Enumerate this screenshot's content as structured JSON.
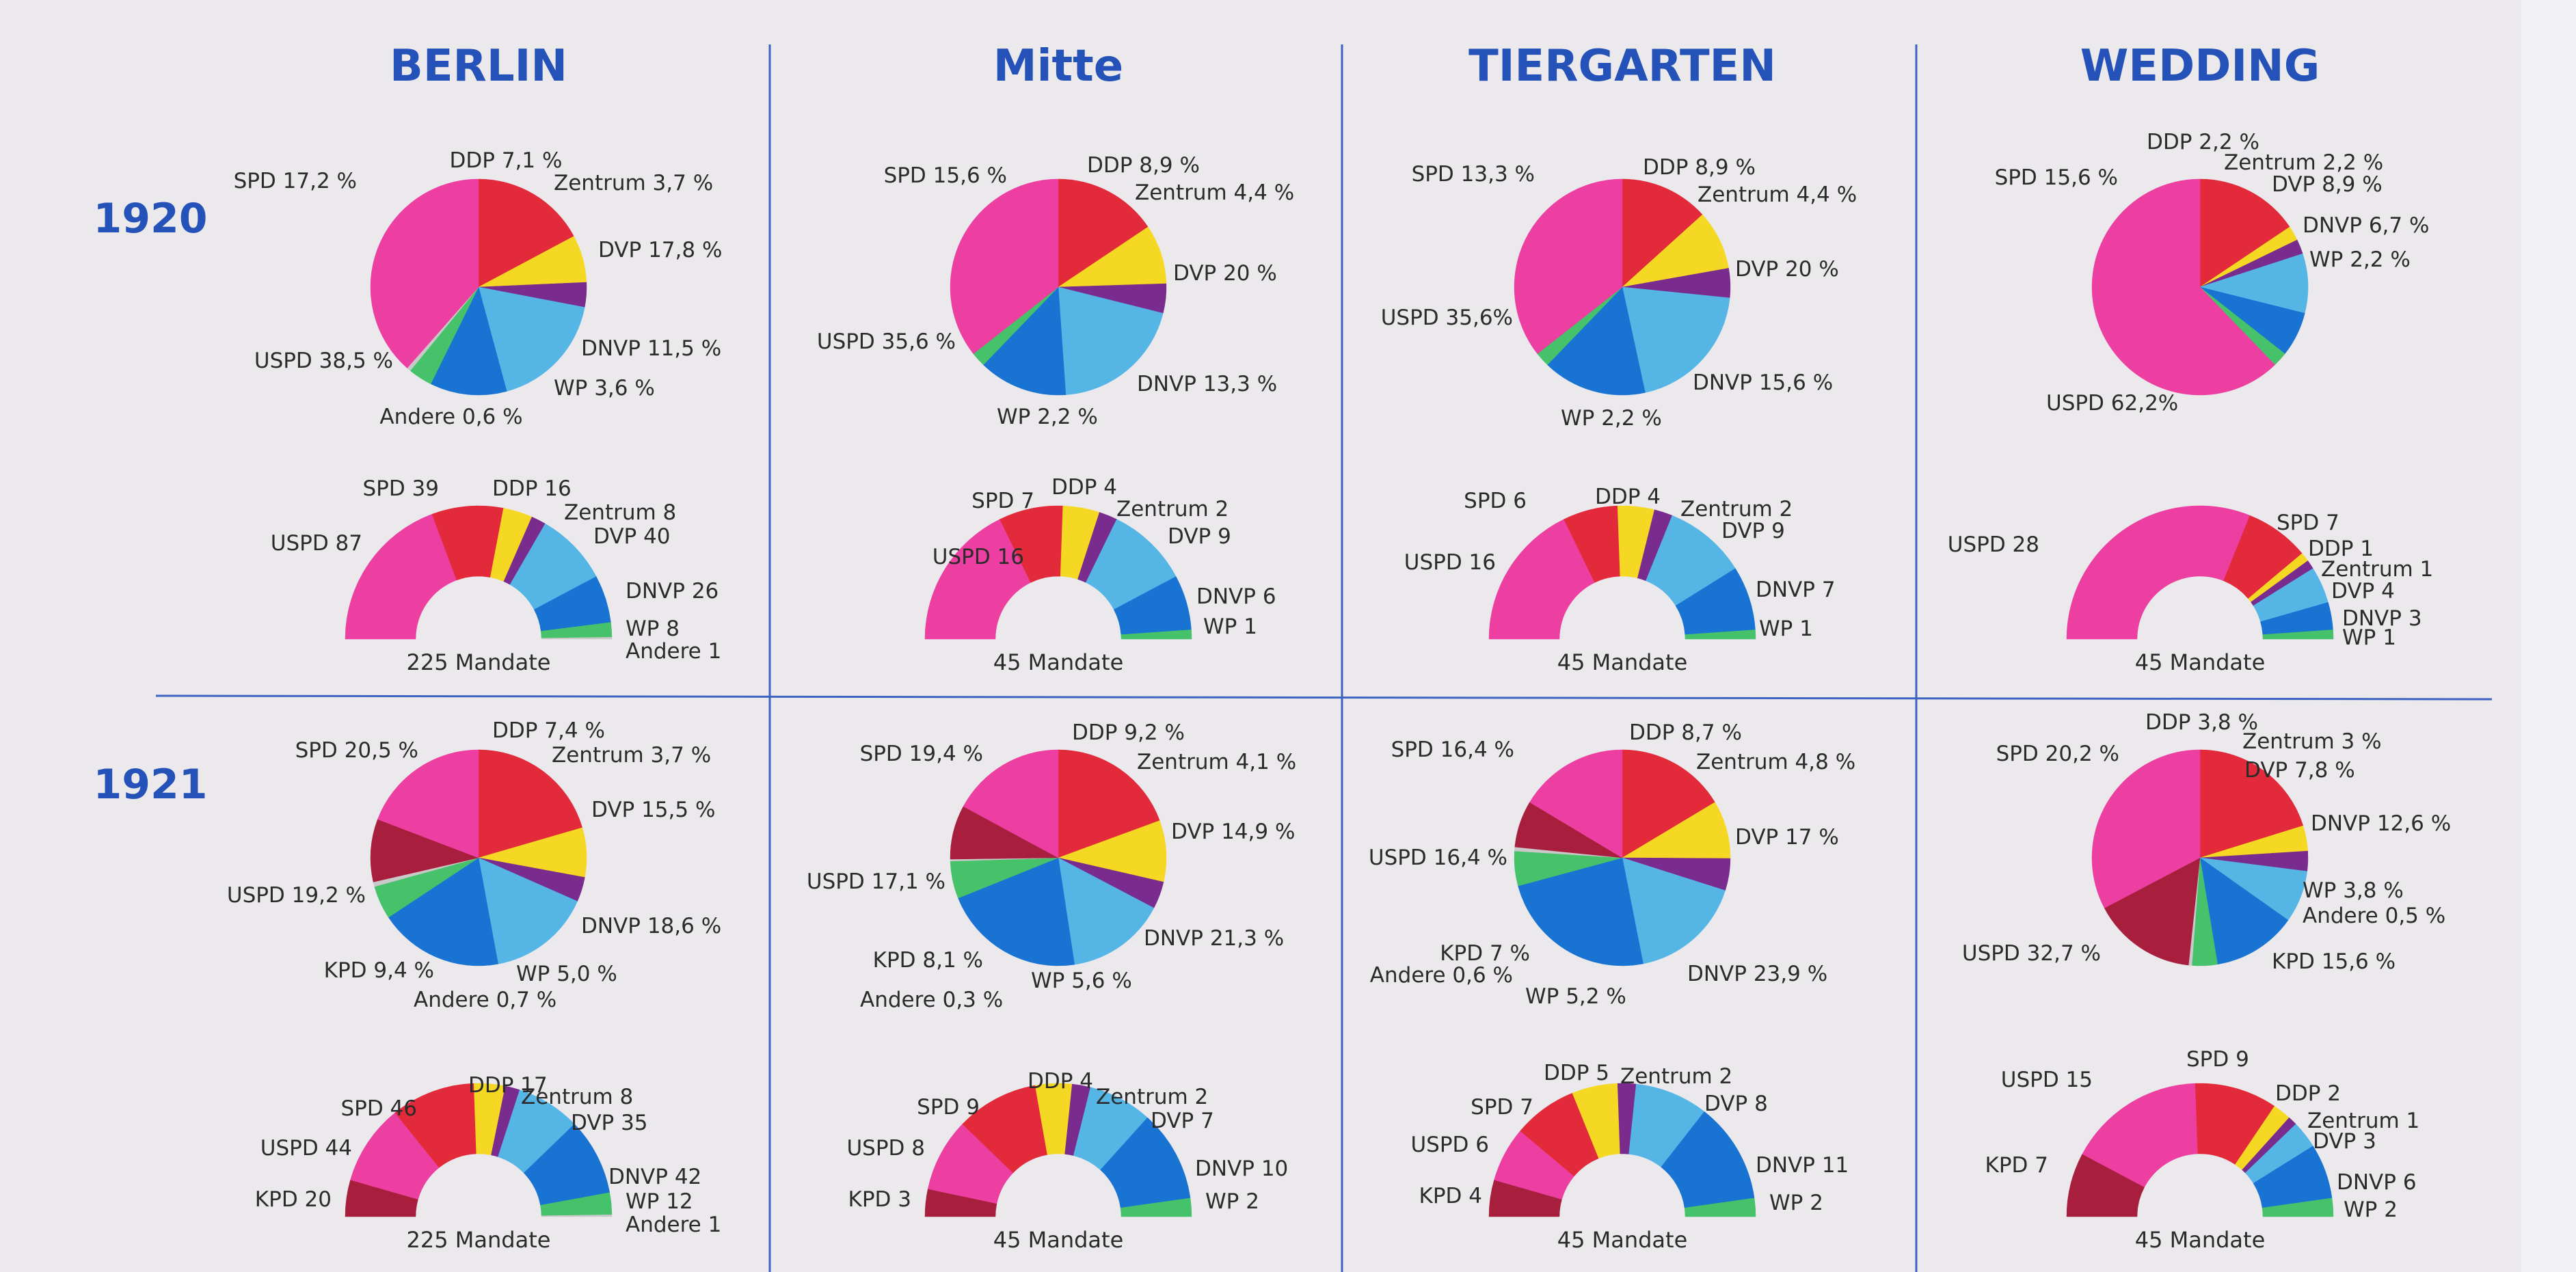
{
  "colors": {
    "background": "#ebe9ec",
    "heading": "#2452b8",
    "grid_line": "#3e63c2",
    "label": "#2b2b2b",
    "party": {
      "SPD": "#e22a3a",
      "DDP": "#f5d823",
      "Zentrum": "#7a2b8e",
      "DVP": "#55b6e6",
      "DNVP": "#1873d2",
      "WP": "#45c26a",
      "Andere": "#c9c9c9",
      "USPD": "#ec3fa1",
      "KPD": "#a81f3d"
    }
  },
  "chart_data": {
    "type": "pie",
    "title": "",
    "regions": [
      "BERLIN",
      "Mitte",
      "TIERGARTEN",
      "WEDDING"
    ],
    "years": [
      "1920",
      "1921"
    ],
    "seats_suffix": "Mandate",
    "order_1920": [
      "SPD",
      "DDP",
      "Zentrum",
      "DVP",
      "DNVP",
      "WP",
      "Andere",
      "USPD"
    ],
    "order_1921": [
      "SPD",
      "DDP",
      "Zentrum",
      "DVP",
      "DNVP",
      "WP",
      "Andere",
      "KPD",
      "USPD"
    ],
    "seat_order_1920": [
      "USPD",
      "SPD",
      "DDP",
      "Zentrum",
      "DVP",
      "DNVP",
      "WP",
      "Andere"
    ],
    "seat_order_1921": [
      "KPD",
      "USPD",
      "SPD",
      "DDP",
      "Zentrum",
      "DVP",
      "DNVP",
      "WP",
      "Andere"
    ],
    "panels": [
      {
        "region": "BERLIN",
        "year": "1920",
        "vote_share": {
          "SPD": 17.2,
          "DDP": 7.1,
          "Zentrum": 3.7,
          "DVP": 17.8,
          "DNVP": 11.5,
          "WP": 3.6,
          "Andere": 0.6,
          "USPD": 38.5
        },
        "vote_labels": {
          "SPD": "SPD 17,2 %",
          "DDP": "DDP 7,1 %",
          "Zentrum": "Zentrum 3,7 %",
          "DVP": "DVP 17,8 %",
          "DNVP": "DNVP 11,5 %",
          "WP": "WP 3,6 %",
          "Andere": "Andere 0,6 %",
          "USPD": "USPD 38,5 %"
        },
        "seats": {
          "USPD": 87,
          "SPD": 39,
          "DDP": 16,
          "Zentrum": 8,
          "DVP": 40,
          "DNVP": 26,
          "WP": 8,
          "Andere": 1
        },
        "seat_labels": {
          "USPD": "USPD 87",
          "SPD": "SPD 39",
          "DDP": "DDP 16",
          "Zentrum": "Zentrum 8",
          "DVP": "DVP 40",
          "DNVP": "DNVP 26",
          "WP": "WP 8",
          "Andere": "Andere 1"
        },
        "total_label": "225 Mandate"
      },
      {
        "region": "Mitte",
        "year": "1920",
        "vote_share": {
          "SPD": 15.6,
          "DDP": 8.9,
          "Zentrum": 4.4,
          "DVP": 20,
          "DNVP": 13.3,
          "WP": 2.2,
          "USPD": 35.6
        },
        "vote_labels": {
          "SPD": "SPD 15,6 %",
          "DDP": "DDP 8,9 %",
          "Zentrum": "Zentrum 4,4 %",
          "DVP": "DVP 20 %",
          "DNVP": "DNVP 13,3 %",
          "WP": "WP 2,2 %",
          "USPD": "USPD 35,6 %"
        },
        "seats": {
          "USPD": 16,
          "SPD": 7,
          "DDP": 4,
          "Zentrum": 2,
          "DVP": 9,
          "DNVP": 6,
          "WP": 1
        },
        "seat_labels": {
          "USPD": "USPD 16",
          "SPD": "SPD 7",
          "DDP": "DDP 4",
          "Zentrum": "Zentrum 2",
          "DVP": "DVP 9",
          "DNVP": "DNVP 6",
          "WP": "WP 1"
        },
        "total_label": "45 Mandate"
      },
      {
        "region": "TIERGARTEN",
        "year": "1920",
        "vote_share": {
          "SPD": 13.3,
          "DDP": 8.9,
          "Zentrum": 4.4,
          "DVP": 20,
          "DNVP": 15.6,
          "WP": 2.2,
          "USPD": 35.6
        },
        "vote_labels": {
          "SPD": "SPD 13,3 %",
          "DDP": "DDP 8,9 %",
          "Zentrum": "Zentrum 4,4 %",
          "DVP": "DVP 20 %",
          "DNVP": "DNVP 15,6 %",
          "WP": "WP 2,2 %",
          "USPD": "USPD 35,6%"
        },
        "seats": {
          "USPD": 16,
          "SPD": 6,
          "DDP": 4,
          "Zentrum": 2,
          "DVP": 9,
          "DNVP": 7,
          "WP": 1
        },
        "seat_labels": {
          "USPD": "USPD 16",
          "SPD": "SPD 6",
          "DDP": "DDP 4",
          "Zentrum": "Zentrum 2",
          "DVP": "DVP 9",
          "DNVP": "DNVP 7",
          "WP": "WP 1"
        },
        "total_label": "45 Mandate"
      },
      {
        "region": "WEDDING",
        "year": "1920",
        "vote_share": {
          "SPD": 15.6,
          "DDP": 2.2,
          "Zentrum": 2.2,
          "DVP": 8.9,
          "DNVP": 6.7,
          "WP": 2.2,
          "USPD": 62.2
        },
        "vote_labels": {
          "SPD": "SPD 15,6 %",
          "DDP": "DDP 2,2 %",
          "Zentrum": "Zentrum 2,2 %",
          "DVP": "DVP 8,9 %",
          "DNVP": "DNVP 6,7 %",
          "WP": "WP 2,2 %",
          "USPD": "USPD 62,2%"
        },
        "seats": {
          "USPD": 28,
          "SPD": 7,
          "DDP": 1,
          "Zentrum": 1,
          "DVP": 4,
          "DNVP": 3,
          "WP": 1
        },
        "seat_labels": {
          "USPD": "USPD 28",
          "SPD": "SPD 7",
          "DDP": "DDP 1",
          "Zentrum": "Zentrum 1",
          "DVP": "DVP 4",
          "DNVP": "DNVP 3",
          "WP": "WP 1"
        },
        "total_label": "45 Mandate"
      },
      {
        "region": "BERLIN",
        "year": "1921",
        "vote_share": {
          "SPD": 20.5,
          "DDP": 7.4,
          "Zentrum": 3.7,
          "DVP": 15.5,
          "DNVP": 18.6,
          "WP": 5.0,
          "Andere": 0.7,
          "KPD": 9.4,
          "USPD": 19.2
        },
        "vote_labels": {
          "SPD": "SPD 20,5 %",
          "DDP": "DDP 7,4 %",
          "Zentrum": "Zentrum 3,7 %",
          "DVP": "DVP 15,5 %",
          "DNVP": "DNVP 18,6 %",
          "WP": "WP 5,0 %",
          "Andere": "Andere 0,7 %",
          "KPD": "KPD 9,4 %",
          "USPD": "USPD 19,2 %"
        },
        "seats": {
          "KPD": 20,
          "USPD": 44,
          "SPD": 46,
          "DDP": 17,
          "Zentrum": 8,
          "DVP": 35,
          "DNVP": 42,
          "WP": 12,
          "Andere": 1
        },
        "seat_labels": {
          "KPD": "KPD 20",
          "USPD": "USPD 44",
          "SPD": "SPD 46",
          "DDP": "DDP 17",
          "Zentrum": "Zentrum 8",
          "DVP": "DVP 35",
          "DNVP": "DNVP 42",
          "WP": "WP 12",
          "Andere": "Andere 1"
        },
        "total_label": "225 Mandate"
      },
      {
        "region": "Mitte",
        "year": "1921",
        "vote_share": {
          "SPD": 19.4,
          "DDP": 9.2,
          "Zentrum": 4.1,
          "DVP": 14.9,
          "DNVP": 21.3,
          "WP": 5.6,
          "Andere": 0.3,
          "KPD": 8.1,
          "USPD": 17.1
        },
        "vote_labels": {
          "SPD": "SPD 19,4 %",
          "DDP": "DDP 9,2 %",
          "Zentrum": "Zentrum 4,1 %",
          "DVP": "DVP 14,9 %",
          "DNVP": "DNVP 21,3 %",
          "WP": "WP 5,6 %",
          "Andere": "Andere 0,3 %",
          "KPD": "KPD 8,1 %",
          "USPD": "USPD 17,1 %"
        },
        "seats": {
          "KPD": 3,
          "USPD": 8,
          "SPD": 9,
          "DDP": 4,
          "Zentrum": 2,
          "DVP": 7,
          "DNVP": 10,
          "WP": 2
        },
        "seat_labels": {
          "KPD": "KPD 3",
          "USPD": "USPD 8",
          "SPD": "SPD 9",
          "DDP": "DDP 4",
          "Zentrum": "Zentrum 2",
          "DVP": "DVP 7",
          "DNVP": "DNVP 10",
          "WP": "WP 2"
        },
        "total_label": "45 Mandate"
      },
      {
        "region": "TIERGARTEN",
        "year": "1921",
        "vote_share": {
          "SPD": 16.4,
          "DDP": 8.7,
          "Zentrum": 4.8,
          "DVP": 17,
          "DNVP": 23.9,
          "WP": 5.2,
          "Andere": 0.6,
          "KPD": 7,
          "USPD": 16.4
        },
        "vote_labels": {
          "SPD": "SPD 16,4 %",
          "DDP": "DDP 8,7 %",
          "Zentrum": "Zentrum 4,8 %",
          "DVP": "DVP 17 %",
          "DNVP": "DNVP 23,9 %",
          "WP": "WP 5,2 %",
          "Andere": "Andere 0,6 %",
          "KPD": "KPD 7 %",
          "USPD": "USPD 16,4 %"
        },
        "seats": {
          "KPD": 4,
          "USPD": 6,
          "SPD": 7,
          "DDP": 5,
          "Zentrum": 2,
          "DVP": 8,
          "DNVP": 11,
          "WP": 2
        },
        "seat_labels": {
          "KPD": "KPD 4",
          "USPD": "USPD 6",
          "SPD": "SPD 7",
          "DDP": "DDP 5",
          "Zentrum": "Zentrum 2",
          "DVP": "DVP 8",
          "DNVP": "DNVP 11",
          "WP": "WP 2"
        },
        "total_label": "45 Mandate"
      },
      {
        "region": "WEDDING",
        "year": "1921",
        "vote_share": {
          "SPD": 20.2,
          "DDP": 3.8,
          "Zentrum": 3,
          "DVP": 7.8,
          "DNVP": 12.6,
          "WP": 3.8,
          "Andere": 0.5,
          "KPD": 15.6,
          "USPD": 32.7
        },
        "vote_labels": {
          "SPD": "SPD 20,2 %",
          "DDP": "DDP 3,8 %",
          "Zentrum": "Zentrum 3 %",
          "DVP": "DVP 7,8 %",
          "DNVP": "DNVP 12,6 %",
          "WP": "WP 3,8 %",
          "Andere": "Andere 0,5 %",
          "KPD": "KPD 15,6 %",
          "USPD": "USPD 32,7 %"
        },
        "seats": {
          "KPD": 7,
          "USPD": 15,
          "SPD": 9,
          "DDP": 2,
          "Zentrum": 1,
          "DVP": 3,
          "DNVP": 6,
          "WP": 2
        },
        "seat_labels": {
          "KPD": "KPD 7",
          "USPD": "USPD 15",
          "SPD": "SPD 9",
          "DDP": "DDP 2",
          "Zentrum": "Zentrum 1",
          "DVP": "DVP 3",
          "DNVP": "DNVP 6",
          "WP": "WP 2"
        },
        "total_label": "45 Mandate"
      }
    ]
  }
}
